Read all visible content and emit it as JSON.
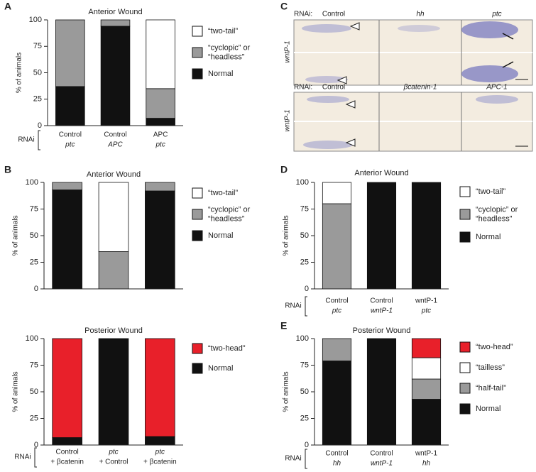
{
  "panel_labels": [
    "A",
    "B",
    "C",
    "D",
    "E"
  ],
  "image_panel": {
    "rows": [
      {
        "labels": [
          "RNAi:",
          "Control",
          "hh",
          "ptc"
        ],
        "side_label": "wntP-1"
      },
      {
        "labels": [
          "RNAi:",
          "Control",
          "βcatenin-1",
          "APC-1"
        ],
        "side_label": "wntP-1"
      }
    ]
  },
  "chart_data": [
    {
      "type": "bar",
      "stacked": true,
      "title": "Anterior Wound",
      "y_label": "% of animals",
      "x_label": "RNAi",
      "categories": [
        [
          "Control",
          "ptc"
        ],
        [
          "Control",
          "APC"
        ],
        [
          "APC",
          "ptc"
        ]
      ],
      "series": [
        {
          "name": [
            "“two-tail”"
          ],
          "color": "#ffffff",
          "values": [
            0,
            0,
            65
          ]
        },
        {
          "name": [
            "“cyclopic” or",
            "“headless”"
          ],
          "color": "#9a9a9a",
          "values": [
            63,
            6,
            28
          ]
        },
        {
          "name": [
            "Normal"
          ],
          "color": "#111111",
          "values": [
            37,
            94,
            7
          ]
        }
      ],
      "ylim": [
        0,
        100
      ],
      "yticks": [
        0,
        25,
        50,
        75,
        100
      ]
    },
    {
      "type": "bar",
      "stacked": true,
      "title": "Anterior Wound",
      "y_label": "% of animals",
      "categories": [
        null,
        null,
        null
      ],
      "series": [
        {
          "name": [
            "“two-tail”"
          ],
          "color": "#ffffff",
          "values": [
            0,
            65,
            0
          ]
        },
        {
          "name": [
            "“cyclopic” or",
            "“headless”"
          ],
          "color": "#9a9a9a",
          "values": [
            7,
            35,
            8
          ]
        },
        {
          "name": [
            "Normal"
          ],
          "color": "#111111",
          "values": [
            93,
            0,
            92
          ]
        }
      ],
      "ylim": [
        0,
        100
      ],
      "yticks": [
        0,
        25,
        50,
        75,
        100
      ]
    },
    {
      "type": "bar",
      "stacked": true,
      "title": "Posterior Wound",
      "y_label": "% of animals",
      "x_label": "RNAi",
      "categories": [
        [
          "Control",
          "+ βcatenin"
        ],
        [
          "ptc",
          "+ Control"
        ],
        [
          "ptc",
          "+ βcatenin"
        ]
      ],
      "series": [
        {
          "name": [
            "“two-head”"
          ],
          "color": "#e8202a",
          "values": [
            93,
            0,
            92
          ]
        },
        {
          "name": [
            "Normal"
          ],
          "color": "#111111",
          "values": [
            7,
            100,
            8
          ]
        }
      ],
      "ylim": [
        0,
        100
      ],
      "yticks": [
        0,
        25,
        50,
        75,
        100
      ]
    },
    {
      "type": "bar",
      "stacked": true,
      "title": "Anterior Wound",
      "y_label": "% of animals",
      "x_label": "RNAi",
      "categories": [
        [
          "Control",
          "ptc"
        ],
        [
          "Control",
          "wntP-1"
        ],
        [
          "wntP-1",
          "ptc"
        ]
      ],
      "series": [
        {
          "name": [
            "“two-tail”"
          ],
          "color": "#ffffff",
          "values": [
            20,
            0,
            0
          ]
        },
        {
          "name": [
            "“cyclopic” or",
            "“headless”"
          ],
          "color": "#9a9a9a",
          "values": [
            80,
            0,
            0
          ]
        },
        {
          "name": [
            "Normal"
          ],
          "color": "#111111",
          "values": [
            0,
            100,
            100
          ]
        }
      ],
      "ylim": [
        0,
        100
      ],
      "yticks": [
        0,
        25,
        50,
        75,
        100
      ]
    },
    {
      "type": "bar",
      "stacked": true,
      "title": "Posterior Wound",
      "y_label": "% of animals",
      "x_label": "RNAi",
      "categories": [
        [
          "Control",
          "hh"
        ],
        [
          "Control",
          "wntP-1"
        ],
        [
          "wntP-1",
          "hh"
        ]
      ],
      "series": [
        {
          "name": [
            "“two-head”"
          ],
          "color": "#e8202a",
          "values": [
            0,
            0,
            18
          ]
        },
        {
          "name": [
            "“tailless”"
          ],
          "color": "#ffffff",
          "values": [
            0,
            0,
            20
          ]
        },
        {
          "name": [
            "“half-tail”"
          ],
          "color": "#9a9a9a",
          "values": [
            21,
            0,
            19
          ]
        },
        {
          "name": [
            "Normal"
          ],
          "color": "#111111",
          "values": [
            79,
            100,
            43
          ]
        }
      ],
      "ylim": [
        0,
        100
      ],
      "yticks": [
        0,
        25,
        50,
        75,
        100
      ]
    }
  ]
}
